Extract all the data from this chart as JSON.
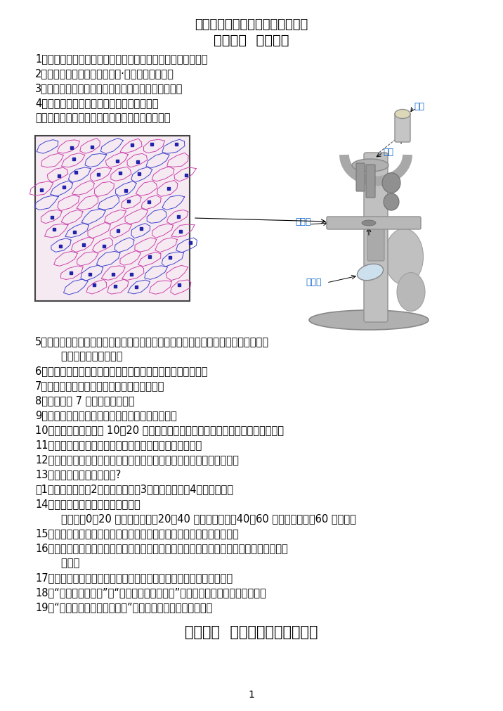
{
  "title_line1": "青岛版六年级科学下册复习知识点",
  "title_line2": "第一单元  人的一生",
  "section2_title": "第二单元  无处不在的能量知识点",
  "top_lines": [
    "1、生物体都是由细胞构成的。细胞是构成生物体的基本单位。",
    "2、细胞是由英国科学家罗伯特·虎克最早发现的。",
    "3、草履虫是由一个细胞构成的，是单细胞原生动物。",
    "4、洋葱表皮细胞是由一个个小格子组成的。",
    "（会画出洋葱表皮细胞的结构；了解显微镜结构）"
  ],
  "bottom_lines": [
    "5、细胞的种类有：血细胞、肌肉细胞、叶子的薄壁细胞、口腔上皮细胞、水蝋草细胞",
    "        鸭跖草的下表皮细胞。",
    "6、生物体生长发育的过程中细胞不断生长、繁殖、衰老、死亡",
    "7、我们每个人的生命都是从一个细胞开始的。",
    "8、人大约在 7 岁时就开始换牙。",
    "9、生长、发育、衰老、死亡是人必然经历的过程。",
    "10、青春期：青少年在 10－20 岁时，身高、体重增长较快，这个阶段称为青春期。",
    "11、青春期开始的年龄因人而异，一般女孩比男孩早两年。",
    "12、青春期是由儿童发育到成人的过渡时期，是人身心发展的关键阶段。",
    "13、如何健康地渡过青春期?",
    "（1）、加强锻炼（2）、合理饮食（3）、保证睡眠（4）、心理咋询",
    "14、人的一生可以分为那几个阶段？",
    "        发育期（0－20 岁）、成熟期（20－40 岁）、渐衰期（40－60 岁）、衰老期（60 岁以上）",
    "15、遗传：生物将自身的形态特征或生理特性传给后代的现象叫做遗传。",
    "16、变异：生物的亲代与子代之间以及子代的个体之间在形态特征或生理特性上的差异叫做",
    "        变异。",
    "17、遗传和变异是生物界普遗存在的现象。世界上没有完全一样的人。",
    "18、“龙生龙，凤生凤”、“种瓜得瓜，种豆得豆”讲的都是生物界中的遗传现象。",
    "19、“一母生九子，九子各不同”讲的是生物界中的变异现象。"
  ],
  "mic_label_eyepiece": "目镜",
  "mic_label_objective": "物镜",
  "mic_label_stage": "载物台",
  "mic_label_mirror": "反光镜",
  "page_number": "1",
  "bg_color": "#ffffff",
  "text_color": "#000000",
  "title_color": "#000000",
  "section2_color": "#000000",
  "label_color": "#1166cc",
  "font_size_body": 10.5,
  "font_size_title": 13,
  "font_size_section2": 15
}
